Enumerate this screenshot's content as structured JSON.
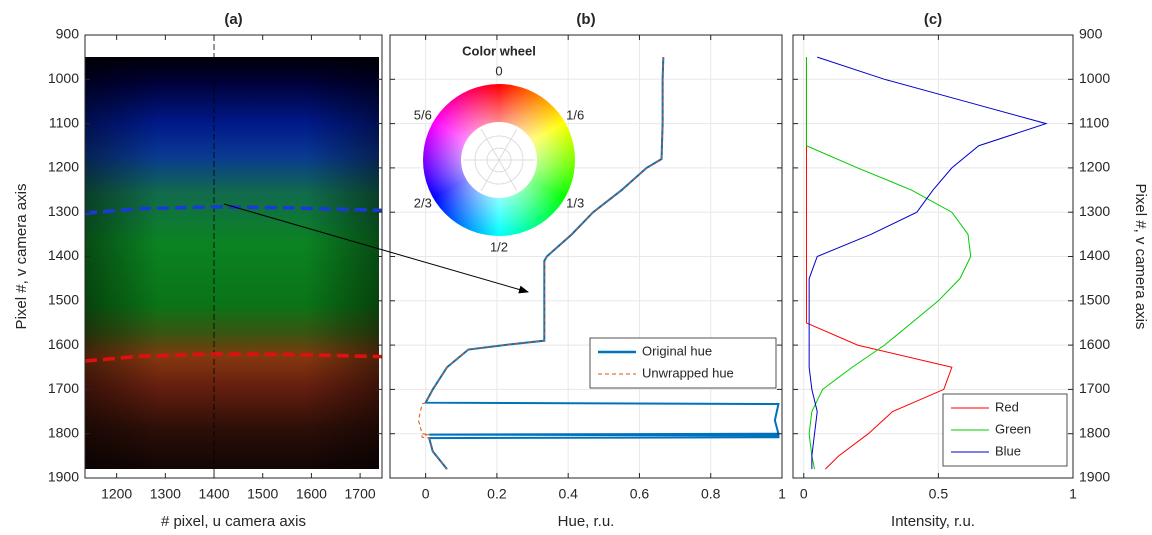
{
  "chart_data": [
    {
      "type": "image",
      "title": "(a)",
      "xlabel": "# pixel, u camera axis",
      "ylabel": "Pixel #, v camera axis",
      "xlim": [
        1135,
        1745
      ],
      "ylim": [
        900,
        1900
      ],
      "y_reversed": true,
      "xticks": [
        1200,
        1300,
        1400,
        1500,
        1600,
        1700
      ],
      "yticks": [
        900,
        1000,
        1100,
        1200,
        1300,
        1400,
        1500,
        1600,
        1700,
        1800,
        1900
      ],
      "yaxis": "left",
      "grid": false,
      "marker_x": 1400,
      "series": [
        {
          "color": "#1a3ad8",
          "x": [
            1135,
            1250,
            1400,
            1550,
            1745
          ],
          "values": [
            1302,
            1292,
            1288,
            1290,
            1296
          ]
        },
        {
          "color": "#e01010",
          "x": [
            1135,
            1250,
            1400,
            1550,
            1745
          ],
          "values": [
            1636,
            1625,
            1620,
            1621,
            1626
          ]
        }
      ]
    },
    {
      "type": "line",
      "title": "(b)",
      "xlabel": "Hue, r.u.",
      "xlim": [
        -0.1,
        1
      ],
      "ylim": [
        900,
        1900
      ],
      "y_reversed": true,
      "xticks": [
        0,
        0.2,
        0.4,
        0.6,
        0.8,
        1
      ],
      "yticks": [
        900,
        1000,
        1100,
        1200,
        1300,
        1400,
        1500,
        1600,
        1700,
        1800,
        1900
      ],
      "yaxis": "none",
      "grid": true,
      "legend": "lower right",
      "y": [
        950,
        1000,
        1100,
        1180,
        1200,
        1250,
        1300,
        1350,
        1400,
        1410,
        1500,
        1590,
        1600,
        1610,
        1650,
        1700,
        1730,
        1733,
        1770,
        1800,
        1802,
        1804,
        1808,
        1810,
        1840,
        1860,
        1880
      ],
      "series": [
        {
          "name": "Original hue",
          "color": "#0072bd",
          "dash": false,
          "values": [
            0.667,
            0.665,
            0.665,
            0.662,
            0.62,
            0.55,
            0.47,
            0.41,
            0.34,
            0.333,
            0.333,
            0.333,
            0.22,
            0.12,
            0.06,
            0.02,
            0,
            0.99,
            0.98,
            0.99,
            0.01,
            0.99,
            0.99,
            0.01,
            0.02,
            0.04,
            0.06
          ]
        },
        {
          "name": "Unwrapped hue",
          "color": "#d95319",
          "dash": true,
          "values": [
            0.667,
            0.665,
            0.665,
            0.662,
            0.62,
            0.55,
            0.47,
            0.41,
            0.34,
            0.333,
            0.333,
            0.333,
            0.22,
            0.12,
            0.06,
            0.02,
            0,
            -0.01,
            -0.02,
            -0.01,
            0.01,
            -0.01,
            -0.01,
            0.01,
            0.02,
            0.04,
            0.06
          ]
        }
      ],
      "inset": {
        "title": "Color wheel",
        "labels": [
          "0",
          "1/6",
          "1/3",
          "1/2",
          "2/3",
          "5/6"
        ]
      }
    },
    {
      "type": "line",
      "title": "(c)",
      "xlabel": "Intensity, r.u.",
      "ylabel": "Pixel #, v camera axis",
      "xlim": [
        -0.04,
        1
      ],
      "ylim": [
        900,
        1900
      ],
      "y_reversed": true,
      "xticks": [
        0,
        0.5,
        1
      ],
      "yticks": [
        900,
        1000,
        1100,
        1200,
        1300,
        1400,
        1500,
        1600,
        1700,
        1800,
        1900
      ],
      "yaxis": "right",
      "grid": true,
      "legend": "lower right",
      "y": [
        950,
        1000,
        1050,
        1100,
        1150,
        1200,
        1250,
        1300,
        1350,
        1400,
        1450,
        1500,
        1550,
        1600,
        1650,
        1700,
        1750,
        1800,
        1850,
        1880
      ],
      "series": [
        {
          "name": "Red",
          "color": "#ff0000",
          "dash": false,
          "values": [
            0.01,
            0.01,
            0.01,
            0.01,
            0.01,
            0.01,
            0.01,
            0.01,
            0.01,
            0.01,
            0.01,
            0.01,
            0.01,
            0.2,
            0.55,
            0.52,
            0.33,
            0.24,
            0.13,
            0.08
          ]
        },
        {
          "name": "Green",
          "color": "#00cc00",
          "dash": false,
          "values": [
            0.01,
            0.01,
            0.01,
            0.01,
            0.01,
            0.2,
            0.4,
            0.55,
            0.61,
            0.62,
            0.58,
            0.5,
            0.4,
            0.3,
            0.18,
            0.07,
            0.03,
            0.02,
            0.03,
            0.04
          ]
        },
        {
          "name": "Blue",
          "color": "#0000cc",
          "dash": false,
          "values": [
            0.05,
            0.3,
            0.6,
            0.9,
            0.65,
            0.55,
            0.48,
            0.42,
            0.25,
            0.05,
            0.02,
            0.02,
            0.02,
            0.02,
            0.02,
            0.03,
            0.05,
            0.04,
            0.03,
            0.03
          ]
        }
      ]
    }
  ]
}
